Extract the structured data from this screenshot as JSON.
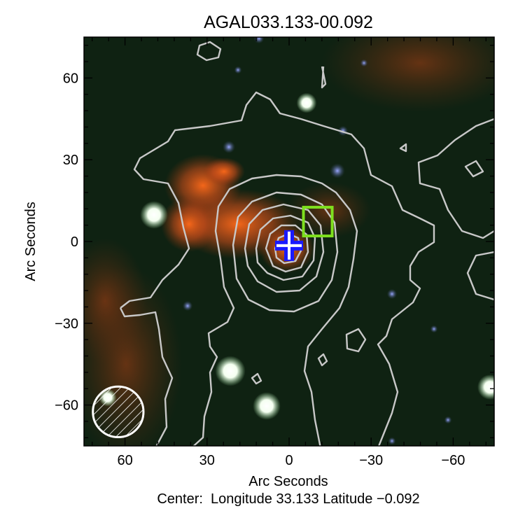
{
  "chart_data": {
    "type": "image",
    "title": "AGAL033.133-00.092",
    "xlabel": "Arc Seconds",
    "ylabel": "Arc Seconds",
    "xlim": [
      75,
      -75
    ],
    "ylim": [
      -75,
      75
    ],
    "xticks": [
      60,
      30,
      0,
      -30,
      -60
    ],
    "yticks": [
      60,
      30,
      0,
      -30,
      -60
    ],
    "xtick_labels": [
      "60",
      "30",
      "0",
      "−30",
      "−60"
    ],
    "ytick_labels": [
      "60",
      "30",
      "0",
      "−30",
      "−60"
    ],
    "minor_tick_step": 6,
    "grid": false,
    "center_marker": {
      "x": 0,
      "y": -1.5,
      "color": "#1a1aff",
      "shape": "cross"
    },
    "source_box": {
      "x": -10.5,
      "y": 7.3,
      "size": 10.5,
      "color": "#7ee01e"
    },
    "beam": {
      "x": 62.5,
      "y": -62.5,
      "diameter": 18.5,
      "style": "hatched",
      "color": "#ffffff"
    },
    "contour_color": "#c8c8c8",
    "contour_levels": 7,
    "footer": "Center:  Longitude 33.133 Latitude −0.092"
  }
}
